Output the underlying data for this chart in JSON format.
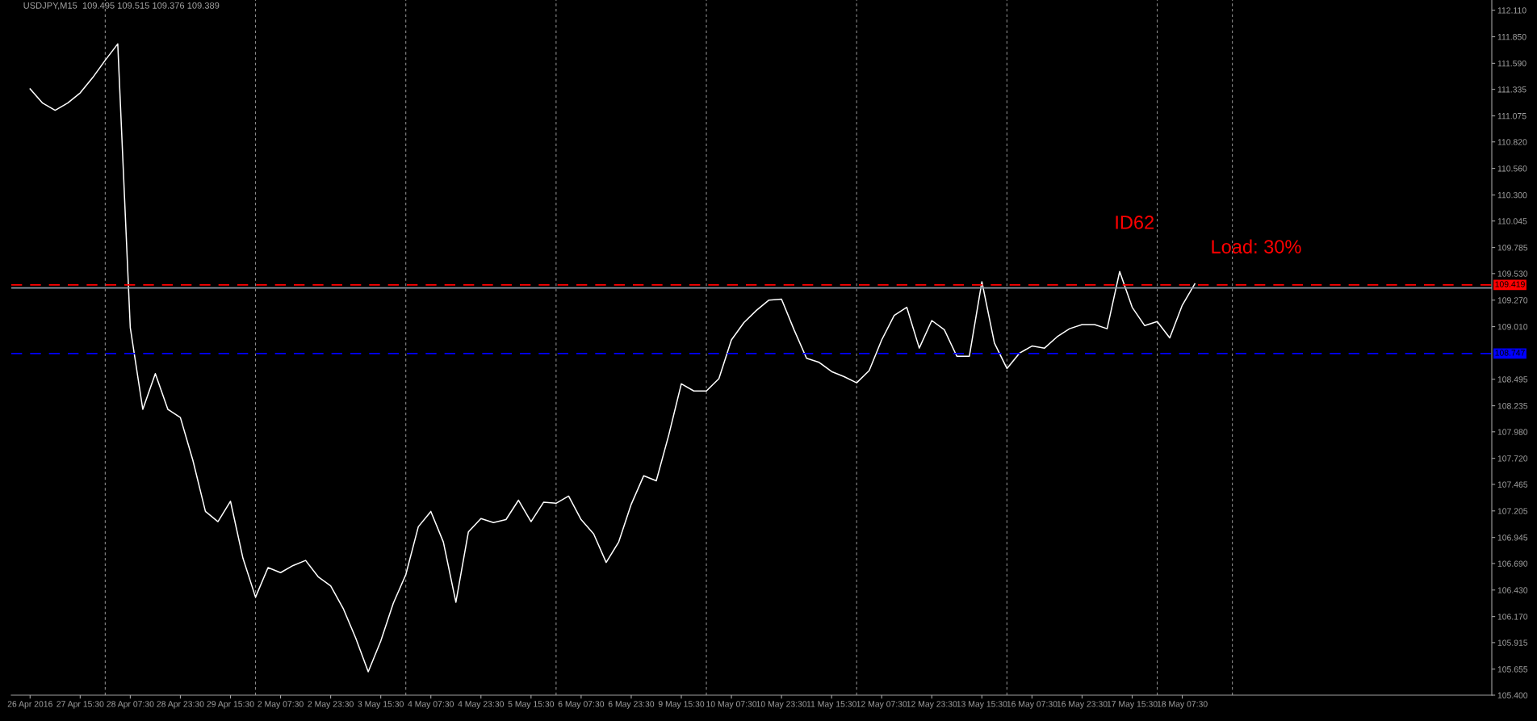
{
  "chart_data": {
    "type": "line",
    "title": "USDJPY,M15  109.495 109.515 109.376 109.389",
    "categories": [
      "26 Apr 2016",
      null,
      null,
      null,
      "27 Apr 15:30",
      null,
      null,
      null,
      "28 Apr 07:30",
      null,
      null,
      null,
      "28 Apr 23:30",
      null,
      null,
      null,
      "29 Apr 15:30",
      null,
      null,
      null,
      "2 May 07:30",
      null,
      null,
      null,
      "2 May 23:30",
      null,
      null,
      null,
      "3 May 15:30",
      null,
      null,
      null,
      "4 May 07:30",
      null,
      null,
      null,
      "4 May 23:30",
      null,
      null,
      null,
      "5 May 15:30",
      null,
      null,
      null,
      "6 May 07:30",
      null,
      null,
      null,
      "6 May 23:30",
      null,
      null,
      null,
      "9 May 15:30",
      null,
      null,
      null,
      "10 May 07:30",
      null,
      null,
      null,
      "10 May 23:30",
      null,
      null,
      null,
      "11 May 15:30",
      null,
      null,
      null,
      "12 May 07:30",
      null,
      null,
      null,
      "12 May 23:30",
      null,
      null,
      null,
      "13 May 15:30",
      null,
      null,
      null,
      "16 May 07:30",
      null,
      null,
      null,
      "16 May 23:30",
      null,
      null,
      null,
      "17 May 15:30",
      null,
      null,
      null,
      "18 May 07:30",
      null
    ],
    "series": [
      {
        "color": "#ffffff",
        "values": [
          111.34,
          111.2,
          111.13,
          111.2,
          111.3,
          111.45,
          111.62,
          111.78,
          109.0,
          108.2,
          108.55,
          108.2,
          108.12,
          107.7,
          107.2,
          107.1,
          107.3,
          106.74,
          106.36,
          106.65,
          106.6,
          106.67,
          106.72,
          106.56,
          106.47,
          106.25,
          105.96,
          105.63,
          105.93,
          106.3,
          106.58,
          107.05,
          107.2,
          106.9,
          106.31,
          107.0,
          107.13,
          107.09,
          107.12,
          107.31,
          107.1,
          107.29,
          107.28,
          107.35,
          107.12,
          106.98,
          106.7,
          106.9,
          107.27,
          107.55,
          107.5,
          107.95,
          108.45,
          108.38,
          108.38,
          108.5,
          108.88,
          109.05,
          109.17,
          109.27,
          109.28,
          108.98,
          108.7,
          108.66,
          108.57,
          108.52,
          108.46,
          108.58,
          108.88,
          109.12,
          109.2,
          108.8,
          109.07,
          108.98,
          108.72,
          108.72,
          109.45,
          108.85,
          108.6,
          108.75,
          108.82,
          108.8,
          108.91,
          108.99,
          109.03,
          109.03,
          108.99,
          109.55,
          109.2,
          109.02,
          109.06,
          108.9,
          109.22,
          109.43
        ]
      }
    ],
    "ylim": [
      105.4,
      112.21
    ],
    "yticks": [
      {
        "value": 112.11,
        "label": "112.110"
      },
      {
        "value": 111.85,
        "label": "111.850"
      },
      {
        "value": 111.59,
        "label": "111.590"
      },
      {
        "value": 111.335,
        "label": "111.335"
      },
      {
        "value": 111.075,
        "label": "111.075"
      },
      {
        "value": 110.82,
        "label": "110.820"
      },
      {
        "value": 110.56,
        "label": "110.560"
      },
      {
        "value": 110.3,
        "label": "110.300"
      },
      {
        "value": 110.045,
        "label": "110.045"
      },
      {
        "value": 109.785,
        "label": "109.785"
      },
      {
        "value": 109.53,
        "label": "109.530"
      },
      {
        "value": 109.27,
        "label": "109.270"
      },
      {
        "value": 109.01,
        "label": "109.010"
      },
      {
        "value": 108.495,
        "label": "108.495"
      },
      {
        "value": 108.235,
        "label": "108.235"
      },
      {
        "value": 107.98,
        "label": "107.980"
      },
      {
        "value": 107.72,
        "label": "107.720"
      },
      {
        "value": 107.465,
        "label": "107.465"
      },
      {
        "value": 107.205,
        "label": "107.205"
      },
      {
        "value": 106.945,
        "label": "106.945"
      },
      {
        "value": 106.69,
        "label": "106.690"
      },
      {
        "value": 106.43,
        "label": "106.430"
      },
      {
        "value": 106.17,
        "label": "106.170"
      },
      {
        "value": 105.915,
        "label": "105.915"
      },
      {
        "value": 105.655,
        "label": "105.655"
      },
      {
        "value": 105.4,
        "label": "105.400"
      }
    ],
    "grid": "x",
    "ref_lines": [
      {
        "axis": "y",
        "value": 109.419,
        "label": "109.419",
        "color": "#ff0000",
        "line_style": "dashed"
      },
      {
        "axis": "y",
        "value": 109.389,
        "color": "#8a9aa8",
        "line_style": "solid"
      },
      {
        "axis": "y",
        "value": 108.747,
        "label": "108.747",
        "color": "#0000ff",
        "line_style": "dashed"
      }
    ],
    "annotations": [
      "ID62",
      "Load: 30%"
    ]
  }
}
